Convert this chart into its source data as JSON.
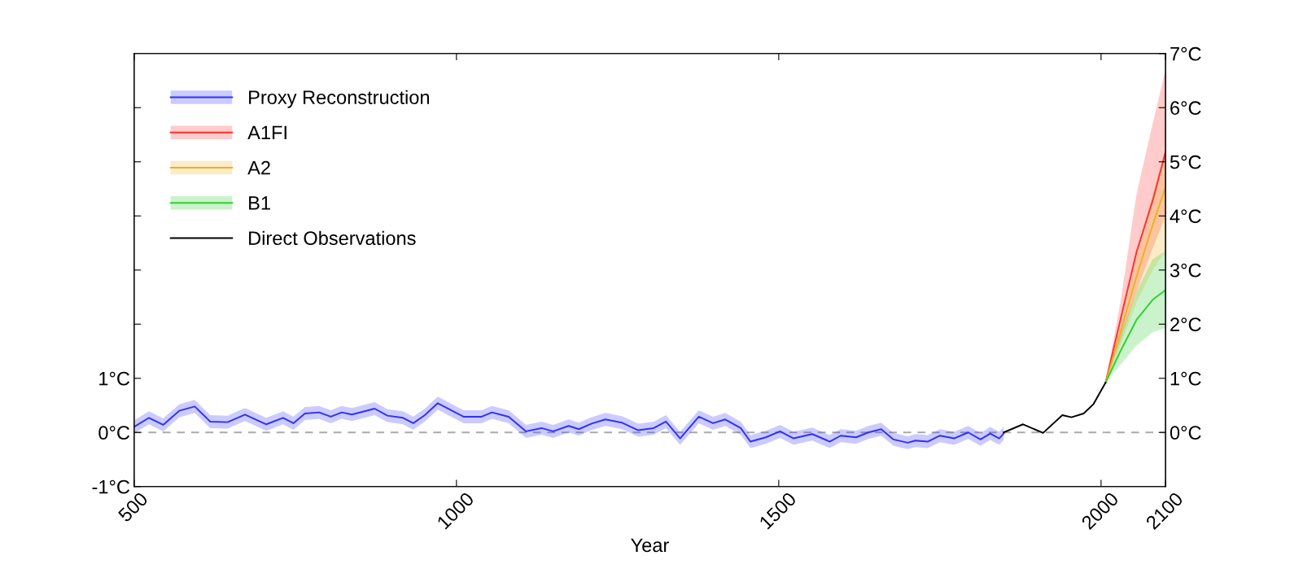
{
  "chart_data": {
    "type": "line",
    "xlabel": "Year",
    "xlim": [
      500,
      2100
    ],
    "xticks": [
      500,
      1000,
      1500,
      2000,
      2100
    ],
    "ylim": [
      -1,
      7
    ],
    "yticks": [
      {
        "value": -1,
        "label": "-1°C"
      },
      {
        "value": 0,
        "label": "0°C"
      },
      {
        "value": 1,
        "label": "1°C"
      },
      {
        "value": 2,
        "label": null
      },
      {
        "value": 3,
        "label": null
      },
      {
        "value": 4,
        "label": null
      },
      {
        "value": 5,
        "label": null
      },
      {
        "value": 6,
        "label": null
      }
    ],
    "y2lim": [
      -1,
      7
    ],
    "y2ticks": [
      {
        "value": 0,
        "label": "0°C"
      },
      {
        "value": 1,
        "label": "1°C"
      },
      {
        "value": 2,
        "label": "2°C"
      },
      {
        "value": 3,
        "label": "3°C"
      },
      {
        "value": 4,
        "label": "4°C"
      },
      {
        "value": 5,
        "label": "5°C"
      },
      {
        "value": 6,
        "label": "6°C"
      },
      {
        "value": 7,
        "label": "7°C"
      }
    ],
    "grid": false,
    "legend": "top left",
    "ref_lines": [
      {
        "axis": "y",
        "value": 0,
        "color": "#aaaaaa",
        "line_style": "dashed"
      }
    ],
    "series": [
      {
        "name": "Proxy Reconstruction",
        "color": "#3030ff",
        "x": [
          501,
          523,
          545,
          570,
          594,
          618,
          645,
          672,
          705,
          731,
          747,
          765,
          787,
          805,
          822,
          838,
          873,
          893,
          917,
          933,
          951,
          971,
          1011,
          1039,
          1055,
          1081,
          1108,
          1132,
          1150,
          1174,
          1190,
          1209,
          1231,
          1257,
          1282,
          1306,
          1325,
          1347,
          1376,
          1398,
          1417,
          1441,
          1456,
          1480,
          1502,
          1523,
          1552,
          1579,
          1596,
          1620,
          1639,
          1659,
          1678,
          1700,
          1712,
          1731,
          1750,
          1772,
          1794,
          1813,
          1828,
          1842,
          1849
        ],
        "values": [
          0.11,
          0.27,
          0.14,
          0.4,
          0.48,
          0.2,
          0.19,
          0.33,
          0.15,
          0.27,
          0.17,
          0.35,
          0.37,
          0.29,
          0.37,
          0.33,
          0.44,
          0.31,
          0.27,
          0.17,
          0.32,
          0.54,
          0.29,
          0.29,
          0.37,
          0.29,
          0.02,
          0.08,
          0.02,
          0.12,
          0.06,
          0.16,
          0.24,
          0.18,
          0.04,
          0.08,
          0.2,
          -0.11,
          0.29,
          0.17,
          0.24,
          0.08,
          -0.17,
          -0.09,
          0.02,
          -0.11,
          -0.03,
          -0.17,
          -0.06,
          -0.09,
          0.0,
          0.06,
          -0.13,
          -0.19,
          -0.15,
          -0.17,
          -0.06,
          -0.11,
          0.0,
          -0.13,
          -0.02,
          -0.11,
          -0.02
        ],
        "lower": [
          -0.01,
          0.15,
          0.02,
          0.28,
          0.36,
          0.08,
          0.07,
          0.21,
          0.03,
          0.15,
          0.05,
          0.23,
          0.25,
          0.17,
          0.25,
          0.21,
          0.32,
          0.19,
          0.15,
          0.05,
          0.2,
          0.42,
          0.17,
          0.17,
          0.25,
          0.17,
          -0.1,
          -0.04,
          -0.1,
          0.0,
          -0.06,
          0.04,
          0.12,
          0.06,
          -0.08,
          -0.04,
          0.08,
          -0.23,
          0.17,
          0.05,
          0.12,
          -0.04,
          -0.29,
          -0.21,
          -0.1,
          -0.23,
          -0.15,
          -0.29,
          -0.18,
          -0.21,
          -0.12,
          -0.06,
          -0.25,
          -0.31,
          -0.27,
          -0.29,
          -0.18,
          -0.23,
          -0.12,
          -0.25,
          -0.14,
          -0.23,
          -0.14
        ],
        "upper": [
          0.23,
          0.39,
          0.26,
          0.52,
          0.6,
          0.32,
          0.31,
          0.45,
          0.27,
          0.39,
          0.29,
          0.47,
          0.49,
          0.41,
          0.49,
          0.45,
          0.56,
          0.43,
          0.39,
          0.29,
          0.44,
          0.66,
          0.41,
          0.41,
          0.49,
          0.41,
          0.14,
          0.2,
          0.14,
          0.24,
          0.18,
          0.28,
          0.36,
          0.3,
          0.16,
          0.2,
          0.32,
          0.01,
          0.41,
          0.29,
          0.36,
          0.2,
          -0.05,
          0.03,
          0.14,
          0.01,
          0.09,
          -0.05,
          0.06,
          0.03,
          0.12,
          0.18,
          -0.01,
          -0.07,
          -0.03,
          -0.05,
          0.06,
          0.01,
          0.12,
          -0.01,
          0.1,
          0.01,
          0.1
        ]
      },
      {
        "name": "A1FI",
        "color": "#ff3030",
        "x": [
          2007,
          2030,
          2055,
          2080,
          2100
        ],
        "values": [
          0.92,
          2.08,
          3.33,
          4.28,
          5.18
        ],
        "lower": [
          0.92,
          1.7,
          2.6,
          3.4,
          4.0
        ],
        "upper": [
          0.92,
          2.4,
          4.4,
          5.7,
          6.7
        ]
      },
      {
        "name": "A2",
        "color": "#f0b020",
        "x": [
          2007,
          2030,
          2055,
          2080,
          2100
        ],
        "values": [
          0.92,
          1.85,
          2.88,
          3.83,
          4.53
        ],
        "lower": [
          0.92,
          1.6,
          2.4,
          3.0,
          3.35
        ],
        "upper": [
          0.92,
          2.0,
          3.3,
          4.4,
          5.2
        ]
      },
      {
        "name": "B1",
        "color": "#30d030",
        "x": [
          2007,
          2030,
          2055,
          2080,
          2100
        ],
        "values": [
          0.92,
          1.5,
          2.08,
          2.45,
          2.63
        ],
        "lower": [
          0.92,
          1.25,
          1.6,
          1.85,
          1.93
        ],
        "upper": [
          0.92,
          1.8,
          2.6,
          3.2,
          3.35
        ]
      },
      {
        "name": "Direct Observations",
        "color": "#000000",
        "x": [
          1849,
          1879,
          1910,
          1940,
          1954,
          1973,
          1988,
          2007
        ],
        "values": [
          0.0,
          0.15,
          -0.01,
          0.32,
          0.28,
          0.35,
          0.52,
          0.92
        ]
      }
    ]
  }
}
